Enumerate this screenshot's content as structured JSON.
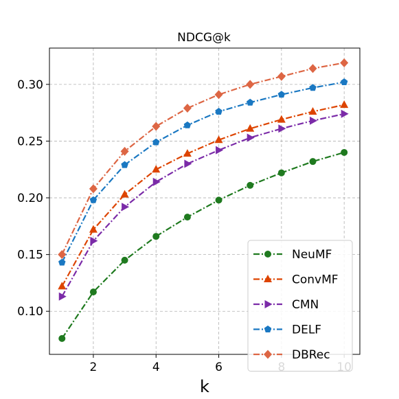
{
  "chart_data": {
    "type": "line",
    "title": "NDCG@k",
    "xlabel": "k",
    "ylabel": "",
    "x": [
      1,
      2,
      3,
      4,
      5,
      6,
      7,
      8,
      9,
      10
    ],
    "xlim": [
      0.6,
      10.5
    ],
    "ylim": [
      0.062,
      0.332
    ],
    "xticks": [
      2,
      4,
      6,
      8,
      10
    ],
    "yticks": [
      0.1,
      0.15,
      0.2,
      0.25,
      0.3
    ],
    "ytick_labels": [
      "0.10",
      "0.15",
      "0.20",
      "0.25",
      "0.30"
    ],
    "grid": true,
    "legend_position": "bottom-right",
    "series": [
      {
        "name": "NeuMF",
        "color": "#1f7a1f",
        "marker": "circle",
        "dash": "dashdot",
        "values": [
          0.076,
          0.117,
          0.145,
          0.166,
          0.183,
          0.198,
          0.211,
          0.222,
          0.232,
          0.24
        ]
      },
      {
        "name": "ConvMF",
        "color": "#dd4400",
        "marker": "triangle-up",
        "dash": "dashdot",
        "values": [
          0.122,
          0.172,
          0.203,
          0.225,
          0.239,
          0.251,
          0.261,
          0.269,
          0.276,
          0.282
        ]
      },
      {
        "name": "CMN",
        "color": "#7b2ba8",
        "marker": "triangle-right",
        "dash": "dashdot",
        "values": [
          0.113,
          0.162,
          0.192,
          0.214,
          0.23,
          0.242,
          0.253,
          0.261,
          0.268,
          0.274
        ]
      },
      {
        "name": "DELF",
        "color": "#1a78c2",
        "marker": "pentagon",
        "dash": "dashdot",
        "values": [
          0.143,
          0.198,
          0.229,
          0.249,
          0.264,
          0.276,
          0.284,
          0.291,
          0.297,
          0.302
        ]
      },
      {
        "name": "DBRec",
        "color": "#dd6644",
        "marker": "diamond",
        "dash": "dashdot",
        "values": [
          0.15,
          0.208,
          0.241,
          0.263,
          0.279,
          0.291,
          0.3,
          0.307,
          0.314,
          0.319
        ]
      }
    ]
  }
}
